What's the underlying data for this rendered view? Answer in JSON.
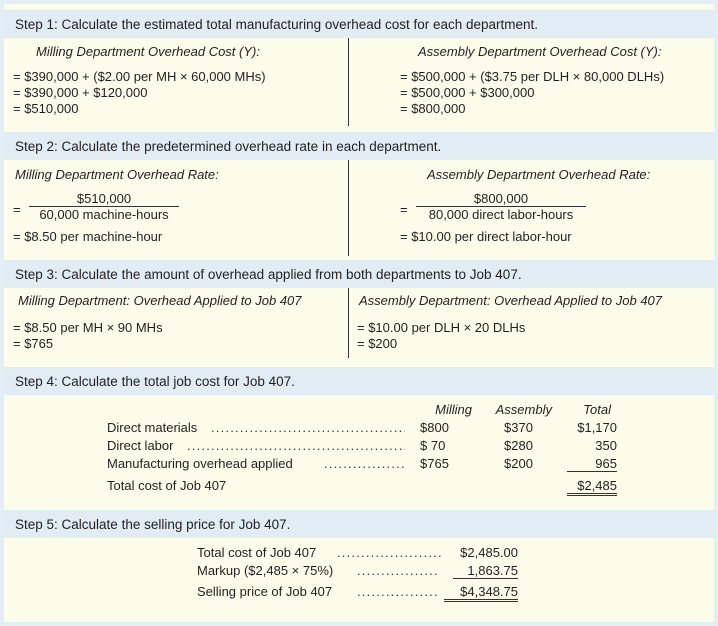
{
  "step1": {
    "title": "Step 1: Calculate the estimated total manufacturing overhead cost for each department.",
    "left_head": "Milling Department Overhead Cost (Y):",
    "right_head": "Assembly Department Overhead Cost (Y):",
    "left_lines": [
      "= $390,000 + ($2.00 per MH × 60,000 MHs)",
      "= $390,000 + $120,000",
      "= $510,000"
    ],
    "right_lines": [
      "= $500,000 + ($3.75 per DLH × 80,000 DLHs)",
      "= $500,000 + $300,000",
      "= $800,000"
    ]
  },
  "step2": {
    "title": "Step 2: Calculate the predetermined overhead rate in each department.",
    "left_head": "Milling Department Overhead Rate:",
    "right_head": "Assembly Department Overhead Rate:",
    "eq": "=",
    "left_num": "$510,000",
    "left_den": "60,000 machine-hours",
    "left_result": "= $8.50 per machine-hour",
    "right_num": "$800,000",
    "right_den": "80,000 direct labor-hours",
    "right_result": "= $10.00 per direct labor-hour"
  },
  "step3": {
    "title": "Step 3: Calculate the amount of overhead applied from both departments to Job 407.",
    "left_head": "Milling Department: Overhead Applied to Job 407",
    "right_head": "Assembly Department: Overhead Applied to Job 407",
    "left_lines": [
      "= $8.50 per MH × 90 MHs",
      "= $765"
    ],
    "right_lines": [
      "= $10.00 per DLH × 20 DLHs",
      "= $200"
    ]
  },
  "step4": {
    "title": "Step 4: Calculate the total job cost for Job 407.",
    "headers": [
      "Milling",
      "Assembly",
      "Total"
    ],
    "rows": [
      {
        "label": "Direct materials",
        "milling": "$800",
        "assembly": "$370",
        "total": "$1,170"
      },
      {
        "label": "Direct labor",
        "milling": "$ 70",
        "assembly": "$280",
        "total": "350"
      },
      {
        "label": "Manufacturing overhead applied",
        "milling": "$765",
        "assembly": "$200",
        "total": "965"
      },
      {
        "label": "Total cost of Job 407",
        "milling": "",
        "assembly": "",
        "total": "$2,485"
      }
    ]
  },
  "step5": {
    "title": "Step 5: Calculate the selling price for Job 407.",
    "rows": [
      {
        "label": "Total cost of Job 407",
        "value": "$2,485.00"
      },
      {
        "label": "Markup ($2,485 × 75%)",
        "value": "1,863.75"
      },
      {
        "label": "Selling price of Job 407",
        "value": "$4,348.75"
      }
    ]
  }
}
